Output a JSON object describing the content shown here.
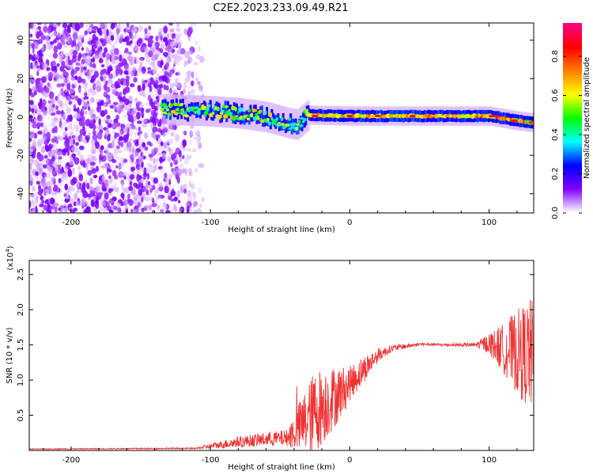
{
  "title": "C2E2.2023.233.09.49.R21",
  "chart_data": [
    {
      "type": "heatmap",
      "xlabel": "Height of straight line (km)",
      "ylabel": "Frequency (Hz)",
      "xlim": [
        -230,
        132
      ],
      "ylim": [
        -50,
        49
      ],
      "xticks": [
        -200,
        -100,
        0,
        100
      ],
      "yticks": [
        -40,
        -20,
        0,
        20,
        40
      ],
      "colorbar": {
        "label": "Normalized spectral amplitude",
        "range": [
          0,
          0.97
        ],
        "ticks": [
          "0.0",
          "0.2",
          "0.4",
          "0.6",
          "0.8"
        ],
        "tick_values": [
          0,
          0.2,
          0.4,
          0.6,
          0.8
        ],
        "colormap": [
          "#ffffff",
          "#8000ff",
          "#0000ff",
          "#00ffff",
          "#00ff00",
          "#ffff00",
          "#ff8000",
          "#ff0000",
          "#ff0080"
        ]
      },
      "features": {
        "noise_region_x": [
          -230,
          -115
        ],
        "band_center_hz": [
          [
            -135,
            4
          ],
          [
            -100,
            3
          ],
          [
            -80,
            2
          ],
          [
            -60,
            0
          ],
          [
            -45,
            -3
          ],
          [
            -38,
            -4
          ],
          [
            -30,
            1
          ],
          [
            0,
            0.5
          ],
          [
            50,
            0.5
          ],
          [
            100,
            0.5
          ],
          [
            120,
            -2
          ],
          [
            132,
            -3
          ]
        ],
        "band_halfwidth_hz": 3
      }
    },
    {
      "type": "line",
      "xlabel": "Height of straight line (km)",
      "ylabel": "SNR (10 * v/v)",
      "y_scale_label": "(x10^4)",
      "y_scale_base": "(x10",
      "y_scale_exp": "4",
      "y_scale_close": ")",
      "xlim": [
        -230,
        132
      ],
      "ylim": [
        0,
        2.7
      ],
      "xticks": [
        -200,
        -100,
        0,
        100
      ],
      "yticks": [
        "0.5",
        "1.0",
        "1.5",
        "2.0",
        "2.5"
      ],
      "ytick_values": [
        0.5,
        1.0,
        1.5,
        2.0,
        2.5
      ],
      "color": "#ee3333",
      "envelope": {
        "x": [
          -230,
          -110,
          -100,
          -80,
          -60,
          -45,
          -35,
          -25,
          -15,
          -5,
          0,
          10,
          20,
          30,
          50,
          70,
          90,
          100,
          110,
          120,
          132
        ],
        "mean": [
          0.02,
          0.03,
          0.06,
          0.12,
          0.16,
          0.18,
          0.35,
          0.55,
          0.7,
          0.85,
          0.95,
          1.15,
          1.35,
          1.45,
          1.51,
          1.5,
          1.5,
          1.52,
          1.45,
          1.4,
          1.35
        ],
        "amp": [
          0.005,
          0.01,
          0.04,
          0.08,
          0.1,
          0.12,
          0.4,
          0.6,
          0.5,
          0.35,
          0.25,
          0.2,
          0.1,
          0.05,
          0.02,
          0.02,
          0.03,
          0.15,
          0.35,
          0.6,
          0.85
        ]
      }
    }
  ]
}
